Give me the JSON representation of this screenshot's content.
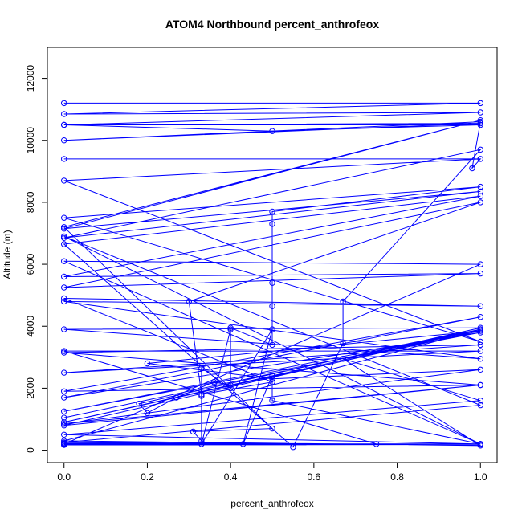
{
  "chart_data": {
    "type": "line",
    "title": "ATOM4 Northbound percent_anthrofeox",
    "xlabel": "percent_anthrofeox",
    "ylabel": "Altitude (m)",
    "xlim": [
      -0.04,
      1.04
    ],
    "ylim": [
      -400,
      13000
    ],
    "x_ticks": [
      0.0,
      0.2,
      0.4,
      0.6,
      0.8,
      1.0
    ],
    "x_tick_labels": [
      "0.0",
      "0.2",
      "0.4",
      "0.6",
      "0.8",
      "1.0"
    ],
    "y_ticks": [
      0,
      2000,
      4000,
      6000,
      8000,
      10000,
      12000
    ],
    "y_tick_labels": [
      "0",
      "2000",
      "4000",
      "6000",
      "8000",
      "10000",
      "12000"
    ],
    "color": "#0000ff",
    "grid": false,
    "legend": "none",
    "series": [
      {
        "x": [
          0,
          1,
          0,
          1,
          0,
          1,
          0.5,
          0,
          1,
          0,
          1,
          0.98,
          1,
          0,
          1,
          0,
          1,
          0,
          1,
          0.5,
          0.5,
          0.5,
          0.5,
          0.5,
          0.4,
          0.4,
          0.33,
          0.33,
          0.33,
          0.31,
          0.5,
          0,
          1,
          0,
          1,
          0,
          1,
          0.67,
          0.67,
          0.55,
          0,
          1,
          0,
          1,
          0,
          1,
          0.3,
          0.33,
          0.5,
          0,
          1,
          0,
          1,
          0,
          1,
          0.18,
          0.2,
          0.27,
          0.36,
          0.4,
          0.4,
          0.33,
          0.5,
          0.43,
          0.5,
          0.5,
          1,
          0,
          1,
          0.75,
          0,
          1,
          0,
          1,
          0,
          1,
          0,
          1,
          0,
          1,
          0,
          1,
          0,
          1,
          0,
          1,
          0.2,
          0.5,
          1,
          0,
          1,
          0,
          1,
          0,
          1,
          0.67,
          0.67,
          1,
          0,
          1,
          0,
          1,
          0,
          1,
          0,
          1,
          0,
          1,
          0,
          1,
          0,
          1,
          0,
          1
        ],
        "y": [
          11200,
          11200,
          10850,
          10900,
          10500,
          10500,
          10300,
          10500,
          10550,
          10000,
          10600,
          9100,
          9400,
          9400,
          9400,
          8700,
          3500,
          7500,
          8500,
          7700,
          7300,
          5400,
          4650,
          3400,
          3950,
          2000,
          2650,
          1750,
          300,
          600,
          700,
          7200,
          10650,
          7150,
          8350,
          6850,
          9700,
          4800,
          3450,
          100,
          6650,
          8200,
          5600,
          5700,
          5250,
          8000,
          4800,
          1800,
          2200,
          4900,
          4650,
          4800,
          2950,
          3900,
          3950,
          1500,
          1200,
          1700,
          2200,
          2100,
          3900,
          200,
          3900,
          200,
          2400,
          1600,
          200,
          200,
          200,
          200,
          3200,
          3200,
          2500,
          3400,
          3150,
          2100,
          1900,
          4300,
          1700,
          3800,
          1250,
          3900,
          1050,
          3900,
          900,
          3850,
          2800,
          2300,
          2600,
          850,
          2100,
          800,
          3900,
          300,
          150,
          2950,
          2950,
          1600,
          500,
          200,
          220,
          200,
          180,
          190,
          170,
          180,
          250,
          1450,
          6900,
          200,
          200,
          6000,
          6100,
          200
        ],
        "marker": "o"
      }
    ]
  }
}
